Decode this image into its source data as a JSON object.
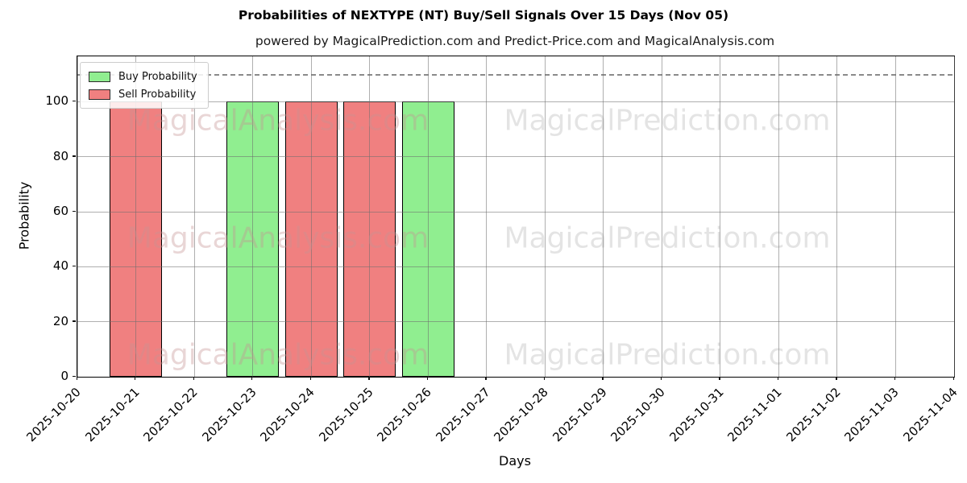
{
  "title": "Probabilities of NEXTYPE (NT) Buy/Sell Signals Over 15 Days (Nov 05)",
  "subtitle": "powered by MagicalPrediction.com and Predict-Price.com and MagicalAnalysis.com",
  "legend": {
    "items": [
      {
        "label": "Buy Probability",
        "color": "#90ee90"
      },
      {
        "label": "Sell Probability",
        "color": "#f08080"
      }
    ]
  },
  "watermarks": {
    "left_text": "MagicalAnalysis.com",
    "right_text": "MagicalPrediction.com"
  },
  "chart_data": {
    "type": "bar",
    "title": "Probabilities of NEXTYPE (NT) Buy/Sell Signals Over 15 Days (Nov 05)",
    "xlabel": "Days",
    "ylabel": "Probability",
    "ylim": [
      0,
      116.5
    ],
    "yticks": [
      0,
      20,
      40,
      60,
      80,
      100
    ],
    "grid": true,
    "legend_position": "upper left",
    "dashed_reference_line_y": 110,
    "categories": [
      "2025-10-20",
      "2025-10-21",
      "2025-10-22",
      "2025-10-23",
      "2025-10-24",
      "2025-10-25",
      "2025-10-26",
      "2025-10-27",
      "2025-10-28",
      "2025-10-29",
      "2025-10-30",
      "2025-10-31",
      "2025-11-01",
      "2025-11-02",
      "2025-11-03",
      "2025-11-04"
    ],
    "series": [
      {
        "name": "Buy Probability",
        "color": "#90ee90",
        "values": [
          0,
          0,
          0,
          100,
          0,
          0,
          100,
          0,
          0,
          0,
          0,
          0,
          0,
          0,
          0,
          0
        ]
      },
      {
        "name": "Sell Probability",
        "color": "#f08080",
        "values": [
          0,
          100,
          0,
          0,
          100,
          100,
          0,
          0,
          0,
          0,
          0,
          0,
          0,
          0,
          0,
          0
        ]
      }
    ]
  }
}
